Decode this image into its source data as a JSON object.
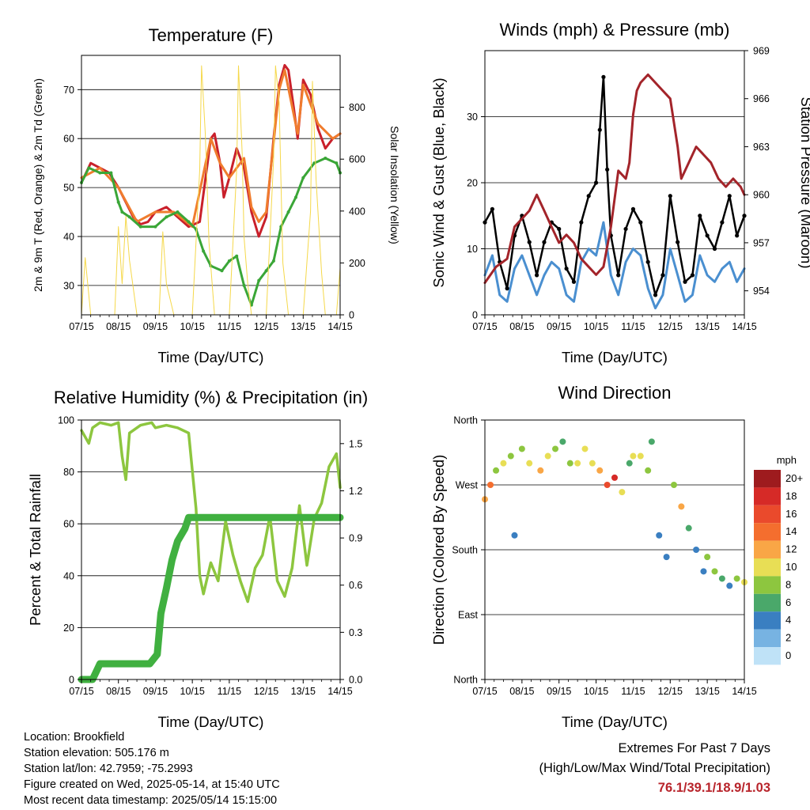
{
  "x_ticks": [
    "07/15",
    "08/15",
    "09/15",
    "10/15",
    "11/15",
    "12/15",
    "13/15",
    "14/15"
  ],
  "chart_data": [
    {
      "type": "line",
      "title": "Temperature (F)",
      "xlabel": "Time (Day/UTC)",
      "ylabel": "2m & 9m T (Red, Orange) & 2m Td (Green)",
      "ylabel_right": "Solar Insolation (Yellow)",
      "ylim": [
        24,
        77
      ],
      "yticks": [
        30,
        40,
        50,
        60,
        70
      ],
      "ylim_right": [
        0,
        1000
      ],
      "yticks_right": [
        0,
        200,
        400,
        600,
        800
      ],
      "x_unit": "days since 07/15 UTC",
      "series": [
        {
          "name": "2m T",
          "color": "#c9202b",
          "x": [
            0,
            0.25,
            0.5,
            0.75,
            1,
            1.2,
            1.4,
            1.6,
            1.8,
            2,
            2.3,
            2.6,
            2.9,
            3.2,
            3.5,
            3.6,
            3.75,
            3.85,
            4,
            4.2,
            4.4,
            4.6,
            4.8,
            5,
            5.2,
            5.35,
            5.5,
            5.6,
            5.75,
            5.85,
            6,
            6.2,
            6.4,
            6.6,
            6.8,
            7
          ],
          "y": [
            51,
            55,
            54,
            53,
            50,
            47,
            44,
            42.5,
            43,
            45,
            46,
            44,
            42,
            43,
            60,
            61,
            55,
            48,
            52,
            58,
            54,
            45,
            40,
            44,
            60,
            71,
            75,
            74,
            66,
            60,
            72,
            69,
            62,
            58,
            60,
            61
          ]
        },
        {
          "name": "9m T",
          "color": "#f07c2e",
          "x": [
            0,
            0.5,
            1,
            1.5,
            2,
            2.5,
            3,
            3.5,
            3.75,
            4,
            4.4,
            4.6,
            4.8,
            5,
            5.35,
            5.5,
            5.85,
            6,
            6.4,
            6.8,
            7
          ],
          "y": [
            52,
            54,
            50,
            43,
            45,
            45,
            42,
            60,
            55,
            52,
            56,
            46,
            43,
            45,
            70,
            74,
            61,
            71,
            63,
            60,
            61
          ]
        },
        {
          "name": "2m Td",
          "color": "#3aa637",
          "x": [
            0,
            0.2,
            0.5,
            0.8,
            1,
            1.1,
            1.3,
            1.6,
            2,
            2.3,
            2.6,
            2.9,
            3.1,
            3.3,
            3.5,
            3.8,
            4,
            4.2,
            4.4,
            4.6,
            4.8,
            5,
            5.2,
            5.4,
            5.6,
            5.8,
            6,
            6.3,
            6.6,
            6.9,
            7
          ],
          "y": [
            51,
            54,
            53,
            53,
            47,
            45,
            44,
            42,
            42,
            44,
            45,
            43,
            41.5,
            37,
            34,
            33,
            35,
            36,
            30,
            26,
            31,
            33,
            35,
            42,
            45,
            48,
            52,
            55,
            56,
            55,
            53
          ]
        },
        {
          "name": "Solar Insolation",
          "color": "#f5d84a",
          "axis": "right",
          "x": [
            0,
            0.1,
            0.25,
            0.6,
            0.9,
            1.0,
            1.1,
            1.2,
            1.3,
            1.5,
            1.9,
            2.1,
            2.2,
            2.3,
            2.5,
            2.9,
            3.0,
            3.2,
            3.25,
            3.35,
            3.4,
            3.45,
            3.6,
            3.9,
            4.0,
            4.2,
            4.25,
            4.35,
            4.4,
            4.5,
            4.6,
            4.9,
            5.0,
            5.2,
            5.25,
            5.35,
            5.4,
            5.45,
            5.6,
            5.9,
            6.0,
            6.2,
            6.25,
            6.35,
            6.5,
            6.6,
            6.9,
            7.0
          ],
          "y": [
            0,
            220,
            0,
            0,
            0,
            340,
            120,
            380,
            210,
            0,
            0,
            0,
            320,
            120,
            0,
            0,
            0,
            560,
            960,
            700,
            500,
            280,
            0,
            0,
            0,
            560,
            960,
            620,
            300,
            120,
            0,
            0,
            0,
            600,
            960,
            820,
            500,
            200,
            0,
            0,
            0,
            400,
            900,
            520,
            160,
            0,
            0,
            180
          ]
        }
      ]
    },
    {
      "type": "line",
      "title": "Winds (mph) & Pressure (mb)",
      "xlabel": "Time (Day/UTC)",
      "ylabel": "Sonic Wind & Gust (Blue, Black)",
      "ylabel_right": "Station Pressure (Maroon)",
      "ylim": [
        0,
        40
      ],
      "yticks": [
        0,
        10,
        20,
        30
      ],
      "ylim_right": [
        952.5,
        969
      ],
      "yticks_right": [
        954,
        957,
        960,
        963,
        966,
        969
      ],
      "x_unit": "days since 07/15 UTC",
      "series": [
        {
          "name": "Sonic Wind",
          "color": "#4a8fd0",
          "x": [
            0,
            0.2,
            0.4,
            0.6,
            0.8,
            1,
            1.2,
            1.4,
            1.6,
            1.8,
            2,
            2.2,
            2.4,
            2.6,
            2.8,
            3,
            3.2,
            3.4,
            3.6,
            3.8,
            4,
            4.2,
            4.4,
            4.6,
            4.8,
            5,
            5.2,
            5.4,
            5.6,
            5.8,
            6,
            6.2,
            6.4,
            6.6,
            6.8,
            7
          ],
          "y": [
            6,
            9,
            3,
            2,
            7,
            9,
            6,
            3,
            6,
            8,
            7,
            3,
            2,
            8,
            10,
            9,
            14,
            6,
            3,
            8,
            10,
            9,
            4,
            1,
            3,
            10,
            6,
            2,
            3,
            9,
            6,
            5,
            7,
            8,
            5,
            7
          ]
        },
        {
          "name": "Gust",
          "color": "#000000",
          "x": [
            0,
            0.2,
            0.4,
            0.6,
            0.8,
            1,
            1.2,
            1.4,
            1.6,
            1.8,
            2,
            2.2,
            2.4,
            2.6,
            2.8,
            3,
            3.1,
            3.2,
            3.3,
            3.4,
            3.6,
            3.8,
            4,
            4.2,
            4.4,
            4.6,
            4.8,
            5,
            5.2,
            5.4,
            5.6,
            5.8,
            6,
            6.2,
            6.4,
            6.6,
            6.8,
            7
          ],
          "y": [
            14,
            16,
            8,
            4,
            12,
            15,
            11,
            6,
            11,
            14,
            13,
            7,
            5,
            14,
            18,
            20,
            28,
            36,
            22,
            12,
            6,
            13,
            16,
            14,
            8,
            3,
            6,
            18,
            11,
            5,
            6,
            15,
            12,
            10,
            14,
            18,
            12,
            15
          ]
        },
        {
          "name": "Station Pressure",
          "color": "#a3242a",
          "axis": "right",
          "x": [
            0,
            0.3,
            0.6,
            0.8,
            1,
            1.2,
            1.4,
            1.6,
            1.8,
            2,
            2.2,
            2.4,
            2.6,
            2.8,
            3,
            3.2,
            3.4,
            3.6,
            3.8,
            3.9,
            4,
            4.1,
            4.2,
            4.4,
            4.6,
            4.8,
            5,
            5.2,
            5.3,
            5.5,
            5.7,
            5.9,
            6.1,
            6.3,
            6.5,
            6.7,
            6.9,
            7
          ],
          "y": [
            954.5,
            955.5,
            956,
            958,
            958.5,
            959,
            960,
            959,
            958,
            957,
            957.5,
            957,
            956,
            955.5,
            955,
            955.5,
            958,
            961.5,
            961,
            962,
            965,
            966.5,
            967,
            967.5,
            967,
            966.5,
            966,
            963,
            961,
            962,
            963,
            962.5,
            962,
            961,
            960.5,
            961,
            960.5,
            960
          ]
        }
      ]
    },
    {
      "type": "line",
      "title": "Relative Humidity (%) & Precipitation (in)",
      "xlabel": "Time (Day/UTC)",
      "ylabel": "Percent & Total Rainfall",
      "ylim": [
        0,
        100
      ],
      "yticks": [
        0,
        20,
        40,
        60,
        80,
        100
      ],
      "ylim_right": [
        0,
        1.65
      ],
      "yticks_right": [
        0,
        0.3,
        0.6,
        0.9,
        1.2,
        1.5
      ],
      "x_unit": "days since 07/15 UTC",
      "series": [
        {
          "name": "Relative Humidity",
          "color": "#8dc63f",
          "x": [
            0,
            0.2,
            0.3,
            0.5,
            0.8,
            1,
            1.1,
            1.2,
            1.3,
            1.6,
            1.9,
            2,
            2.3,
            2.6,
            2.9,
            3.1,
            3.2,
            3.3,
            3.5,
            3.7,
            3.9,
            4.1,
            4.3,
            4.5,
            4.7,
            4.9,
            5.1,
            5.3,
            5.5,
            5.7,
            5.9,
            6.1,
            6.3,
            6.5,
            6.7,
            6.9,
            7
          ],
          "y": [
            96,
            91,
            97,
            99,
            98,
            99,
            86,
            77,
            95,
            98,
            99,
            97,
            98,
            97,
            95,
            66,
            40,
            33,
            45,
            38,
            61,
            48,
            38,
            30,
            43,
            48,
            63,
            38,
            32,
            43,
            67,
            44,
            62,
            68,
            82,
            87,
            74
          ]
        },
        {
          "name": "Total Precipitation",
          "color": "#40b040",
          "axis": "right",
          "x": [
            0,
            0.3,
            0.5,
            1,
            1.5,
            1.85,
            2.05,
            2.15,
            2.3,
            2.45,
            2.6,
            2.8,
            2.9,
            3.0,
            3.5,
            4,
            5,
            6,
            7
          ],
          "y": [
            0,
            0,
            0.1,
            0.1,
            0.1,
            0.1,
            0.16,
            0.42,
            0.58,
            0.76,
            0.88,
            0.96,
            1.03,
            1.03,
            1.03,
            1.03,
            1.03,
            1.03,
            1.03
          ]
        }
      ]
    },
    {
      "type": "scatter",
      "title": "Wind Direction",
      "xlabel": "Time (Day/UTC)",
      "ylabel": "Direction (Colored By Speed)",
      "ylim": [
        0,
        360
      ],
      "ytick_labels": [
        "North",
        "East",
        "South",
        "West",
        "North"
      ],
      "yticks": [
        0,
        90,
        180,
        270,
        360
      ],
      "x_unit": "days since 07/15 UTC",
      "colorbar_title": "mph",
      "colorbar_labels": [
        "20+",
        "18",
        "16",
        "14",
        "12",
        "10",
        "8",
        "6",
        "4",
        "2",
        "0"
      ],
      "colorbar_colors": [
        "#9e1b1e",
        "#d62a27",
        "#ea4a2c",
        "#f46e2e",
        "#f9a646",
        "#e8de55",
        "#8dc63f",
        "#4aa86a",
        "#3a7fc1",
        "#77b3e2",
        "#bfe2f7"
      ],
      "series": [
        {
          "name": "Direction",
          "x": [
            0,
            0.15,
            0.3,
            0.5,
            0.7,
            0.8,
            1,
            1.2,
            1.5,
            1.7,
            1.9,
            2.1,
            2.3,
            2.5,
            2.7,
            2.9,
            3.1,
            3.3,
            3.5,
            3.7,
            3.9,
            4,
            4.2,
            4.4,
            4.5,
            4.7,
            4.9,
            5.1,
            5.3,
            5.5,
            5.7,
            5.9,
            6,
            6.2,
            6.4,
            6.6,
            6.8,
            7
          ],
          "y": [
            250,
            270,
            290,
            300,
            310,
            200,
            320,
            300,
            290,
            310,
            320,
            330,
            300,
            300,
            320,
            300,
            290,
            270,
            280,
            260,
            300,
            310,
            310,
            290,
            330,
            200,
            170,
            270,
            240,
            210,
            180,
            150,
            170,
            150,
            140,
            130,
            140,
            135
          ],
          "speed_mph": [
            12,
            14,
            8,
            9,
            7,
            3,
            8,
            9,
            11,
            9,
            8,
            6,
            7,
            10,
            9,
            9,
            12,
            16,
            17,
            10,
            6,
            9,
            10,
            8,
            6,
            4,
            3,
            8,
            12,
            6,
            4,
            3,
            8,
            7,
            5,
            4,
            8,
            10
          ]
        }
      ]
    }
  ],
  "info": {
    "location": "Location: Brookfield",
    "elevation": "Station elevation: 505.176 m",
    "latlon": "Station lat/lon: 42.7959; -75.2993",
    "created": "Figure created on Wed, 2025-05-14, at 15:40 UTC",
    "recent": "Most recent data timestamp: 2025/05/14 15:15:00"
  },
  "extremes": {
    "title": "Extremes For Past 7 Days",
    "subtitle": "(High/Low/Max Wind/Total Precipitation)",
    "values": "76.1/39.1/18.9/1.03"
  }
}
